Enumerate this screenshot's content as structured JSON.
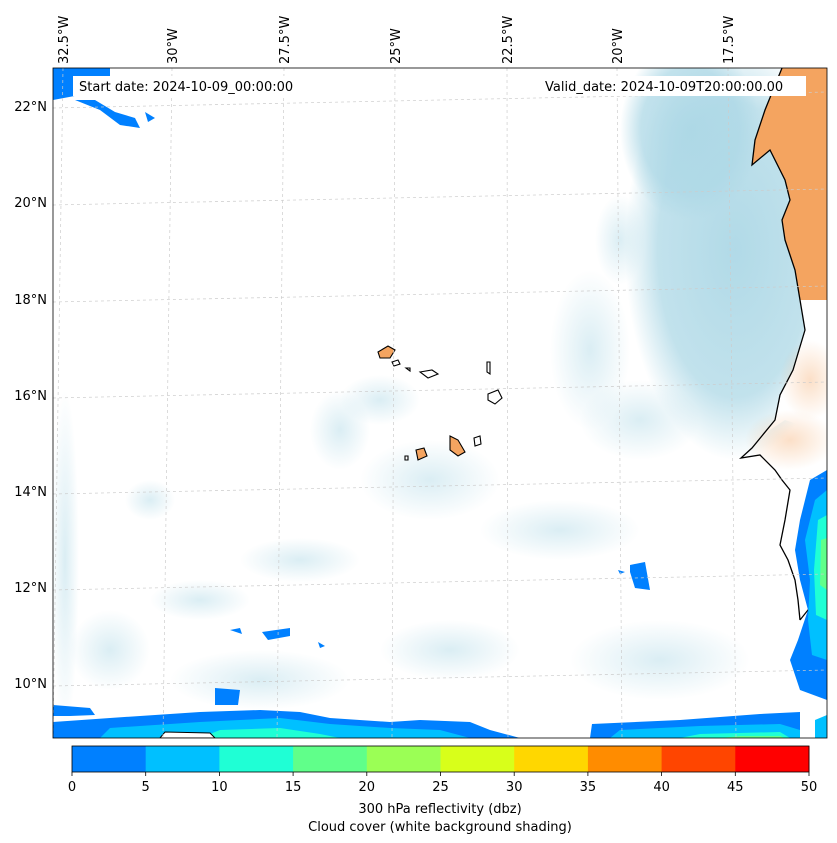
{
  "map": {
    "start_date_label": "Start date: 2024-10-09_00:00:00",
    "valid_date_label": "Valid_date: 2024-10-09T20:00:00.00",
    "lon_labels": [
      "32.5°W",
      "30°W",
      "27.5°W",
      "25°W",
      "22.5°W",
      "20°W",
      "17.5°W"
    ],
    "lat_labels": [
      "22°N",
      "20°N",
      "18°N",
      "16°N",
      "14°N",
      "12°N",
      "10°N"
    ],
    "land_color": "#f4a460",
    "cloud_color": "#add8e6",
    "gridline_color": "#c8c8c8"
  },
  "colorbar": {
    "ticks": [
      "0",
      "5",
      "10",
      "15",
      "20",
      "25",
      "30",
      "35",
      "40",
      "45",
      "50"
    ],
    "colors": [
      "#0080ff",
      "#00c0ff",
      "#1fffd5",
      "#60ff8a",
      "#9bff55",
      "#d8ff1a",
      "#ffd700",
      "#ff8c00",
      "#ff4500",
      "#ff0000"
    ],
    "label_line1": "300 hPa reflectivity (dbz)",
    "label_line2": "Cloud cover (white background shading)"
  }
}
